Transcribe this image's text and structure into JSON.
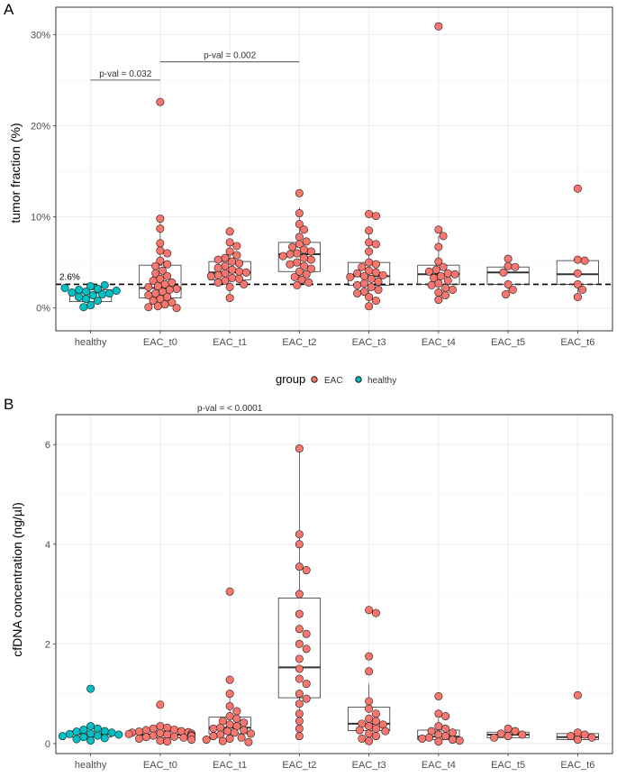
{
  "chart_data": [
    {
      "panel_label": "A",
      "type": "boxplot",
      "ylabel": "tumor fraction (%)",
      "ylim": [
        -2.5,
        33
      ],
      "yticks": [
        0,
        10,
        20,
        30
      ],
      "ytick_labels": [
        "0%",
        "10%",
        "20%",
        "30%"
      ],
      "categories": [
        "healthy",
        "EAC_t0",
        "EAC_t1",
        "EAC_t2",
        "EAC_t3",
        "EAC_t4",
        "EAC_t5",
        "EAC_t6"
      ],
      "threshold": {
        "value": 2.6,
        "label": "2.6%"
      },
      "boxes": [
        {
          "q1": 0.7,
          "median": 1.7,
          "q3": 2.0,
          "whisker_low": 0.1,
          "whisker_high": 2.5
        },
        {
          "q1": 1.1,
          "median": 2.2,
          "q3": 4.7,
          "whisker_low": 0.0,
          "whisker_high": 9.8
        },
        {
          "q1": 3.1,
          "median": 3.9,
          "q3": 5.1,
          "whisker_low": 1.1,
          "whisker_high": 7.3
        },
        {
          "q1": 4.0,
          "median": 5.9,
          "q3": 7.2,
          "whisker_low": 2.3,
          "whisker_high": 11.0
        },
        {
          "q1": 2.5,
          "median": 3.5,
          "q3": 5.0,
          "whisker_low": 0.2,
          "whisker_high": 8.5
        },
        {
          "q1": 2.6,
          "median": 3.7,
          "q3": 4.7,
          "whisker_low": 0.9,
          "whisker_high": 7.9
        },
        {
          "q1": 2.6,
          "median": 3.9,
          "q3": 4.5,
          "whisker_low": 1.5,
          "whisker_high": 5.3
        },
        {
          "q1": 2.6,
          "median": 3.7,
          "q3": 5.2,
          "whisker_low": 1.2,
          "whisker_high": 5.3
        }
      ],
      "points": [
        [
          0.3,
          0.8,
          1.0,
          1.2,
          1.4,
          1.5,
          1.6,
          1.7,
          1.8,
          1.9,
          2.0,
          2.1,
          2.2,
          2.4,
          2.5,
          0.1
        ],
        [
          22.6,
          9.8,
          8.7,
          7.1,
          6.3,
          6.0,
          5.2,
          4.8,
          4.6,
          4.1,
          3.8,
          3.5,
          3.2,
          3.0,
          2.8,
          2.6,
          2.4,
          2.3,
          2.1,
          2.0,
          1.8,
          1.6,
          1.4,
          1.2,
          1.0,
          0.8,
          0.6,
          0.4,
          0.2,
          0.1,
          0.0
        ],
        [
          8.4,
          7.2,
          6.8,
          6.2,
          5.8,
          5.5,
          5.3,
          5.1,
          4.9,
          4.6,
          4.4,
          4.2,
          4.0,
          3.9,
          3.8,
          3.6,
          3.5,
          3.3,
          3.2,
          3.0,
          2.8,
          2.6,
          2.3,
          1.1
        ],
        [
          12.6,
          10.4,
          9.2,
          8.6,
          7.8,
          7.3,
          7.0,
          6.7,
          6.4,
          6.2,
          6.0,
          5.9,
          5.7,
          5.5,
          5.3,
          5.0,
          4.8,
          4.6,
          4.3,
          4.0,
          3.7,
          3.4,
          3.1,
          2.8,
          2.5
        ],
        [
          10.3,
          10.1,
          8.5,
          7.2,
          7.0,
          6.2,
          5.0,
          4.8,
          4.5,
          4.1,
          3.9,
          3.8,
          3.6,
          3.5,
          3.4,
          3.2,
          2.9,
          2.7,
          2.5,
          2.3,
          2.0,
          1.8,
          1.6,
          1.2,
          0.8,
          0.2
        ],
        [
          30.9,
          8.6,
          7.9,
          6.7,
          5.1,
          4.5,
          4.2,
          4.0,
          3.8,
          3.7,
          3.5,
          3.3,
          3.0,
          2.7,
          2.5,
          2.2,
          2.0,
          1.7,
          1.4,
          0.9
        ],
        [
          5.4,
          4.6,
          4.5,
          3.9,
          2.6,
          2.0,
          1.5
        ],
        [
          13.1,
          5.3,
          5.2,
          3.8,
          2.6,
          2.0,
          1.2
        ]
      ],
      "annotations": [
        {
          "text": "p-val = 0.032",
          "from": "healthy",
          "to": "EAC_t0",
          "y": 25.0
        },
        {
          "text": "p-val = 0.002",
          "from": "EAC_t0",
          "to": "EAC_t2",
          "y": 27.0
        }
      ]
    },
    {
      "panel_label": "B",
      "type": "boxplot",
      "ylabel": "cfDNA concentration (ng/µl)",
      "ylim": [
        -0.2,
        6.6
      ],
      "yticks": [
        0,
        2,
        4,
        6
      ],
      "ytick_labels": [
        "0",
        "2",
        "4",
        "6"
      ],
      "categories": [
        "healthy",
        "EAC_t0",
        "EAC_t1",
        "EAC_t2",
        "EAC_t3",
        "EAC_t4",
        "EAC_t5",
        "EAC_t6"
      ],
      "boxes": [
        {
          "q1": 0.13,
          "median": 0.19,
          "q3": 0.25,
          "whisker_low": 0.05,
          "whisker_high": 0.35
        },
        {
          "q1": 0.12,
          "median": 0.18,
          "q3": 0.25,
          "whisker_low": 0.03,
          "whisker_high": 0.35
        },
        {
          "q1": 0.2,
          "median": 0.32,
          "q3": 0.53,
          "whisker_low": 0.02,
          "whisker_high": 1.0
        },
        {
          "q1": 0.92,
          "median": 1.53,
          "q3": 2.92,
          "whisker_low": 0.13,
          "whisker_high": 5.9
        },
        {
          "q1": 0.26,
          "median": 0.4,
          "q3": 0.73,
          "whisker_low": 0.02,
          "whisker_high": 1.2
        },
        {
          "q1": 0.08,
          "median": 0.14,
          "q3": 0.27,
          "whisker_low": 0.02,
          "whisker_high": 0.5
        },
        {
          "q1": 0.12,
          "median": 0.18,
          "q3": 0.23,
          "whisker_low": 0.1,
          "whisker_high": 0.3
        },
        {
          "q1": 0.08,
          "median": 0.13,
          "q3": 0.2,
          "whisker_low": 0.05,
          "whisker_high": 0.22
        }
      ],
      "points": [
        [
          1.1,
          0.35,
          0.3,
          0.28,
          0.25,
          0.24,
          0.22,
          0.2,
          0.19,
          0.18,
          0.16,
          0.15,
          0.13,
          0.11,
          0.09,
          0.06
        ],
        [
          0.78,
          0.35,
          0.32,
          0.3,
          0.28,
          0.27,
          0.25,
          0.24,
          0.23,
          0.22,
          0.21,
          0.2,
          0.19,
          0.18,
          0.17,
          0.16,
          0.15,
          0.14,
          0.13,
          0.12,
          0.1,
          0.08,
          0.06,
          0.04
        ],
        [
          3.05,
          1.28,
          1.0,
          0.75,
          0.65,
          0.55,
          0.5,
          0.45,
          0.42,
          0.38,
          0.35,
          0.32,
          0.3,
          0.27,
          0.25,
          0.22,
          0.2,
          0.18,
          0.15,
          0.12,
          0.1,
          0.08,
          0.05,
          0.03
        ],
        [
          5.92,
          4.2,
          4.0,
          3.55,
          3.48,
          3.0,
          2.6,
          2.3,
          2.2,
          2.0,
          1.9,
          1.7,
          1.5,
          1.3,
          1.2,
          1.0,
          0.9,
          0.8,
          0.6,
          0.45,
          0.3,
          0.15
        ],
        [
          2.68,
          2.62,
          1.75,
          1.45,
          0.85,
          0.7,
          0.6,
          0.5,
          0.45,
          0.4,
          0.38,
          0.35,
          0.3,
          0.27,
          0.25,
          0.2,
          0.15,
          0.1,
          0.05
        ],
        [
          0.95,
          0.6,
          0.55,
          0.35,
          0.3,
          0.25,
          0.22,
          0.18,
          0.15,
          0.12,
          0.1,
          0.08,
          0.06,
          0.04
        ],
        [
          0.3,
          0.25,
          0.2,
          0.18,
          0.15,
          0.12
        ],
        [
          0.97,
          0.22,
          0.18,
          0.15,
          0.12,
          0.08
        ]
      ],
      "annotations": [
        {
          "text": "p-val = < 0.0001",
          "from": "EAC_t0",
          "to": "EAC_t2",
          "y": 6.6
        }
      ]
    }
  ],
  "legend": {
    "title": "group",
    "entries": [
      {
        "label": "EAC",
        "color": "#F8766D"
      },
      {
        "label": "healthy",
        "color": "#00BFC4"
      }
    ]
  },
  "colors": {
    "EAC": "#F8766D",
    "healthy": "#00BFC4",
    "panel_border": "#333333",
    "grid": "#EBEBEB",
    "point_stroke": "#1A1A1A"
  }
}
